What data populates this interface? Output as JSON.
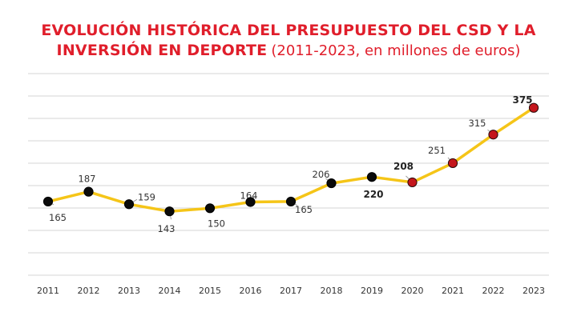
{
  "chart_data": {
    "type": "line",
    "title_bold": "EVOLUCIÓN HISTÓRICA DEL PRESUPUESTO DEL CSD Y LA",
    "title_bold_2": "INVERSIÓN EN DEPORTE",
    "title_light": "(2011-2023, en millones de euros)",
    "x": [
      "2011",
      "2012",
      "2013",
      "2014",
      "2015",
      "2016",
      "2017",
      "2018",
      "2019",
      "2020",
      "2021",
      "2022",
      "2023"
    ],
    "series": [
      {
        "values": [
          165,
          187,
          159,
          143,
          150,
          164,
          165,
          206,
          220,
          208,
          251,
          315,
          375
        ]
      }
    ],
    "ylim": [
      0,
      400
    ],
    "grid": true,
    "line_color": "#f5c518",
    "marker_color_default": "#0a0a0a",
    "marker_color_highlight": "#c4161c",
    "highlight_from": "2020",
    "bold_labels": [
      "2019",
      "2020",
      "2023"
    ]
  }
}
